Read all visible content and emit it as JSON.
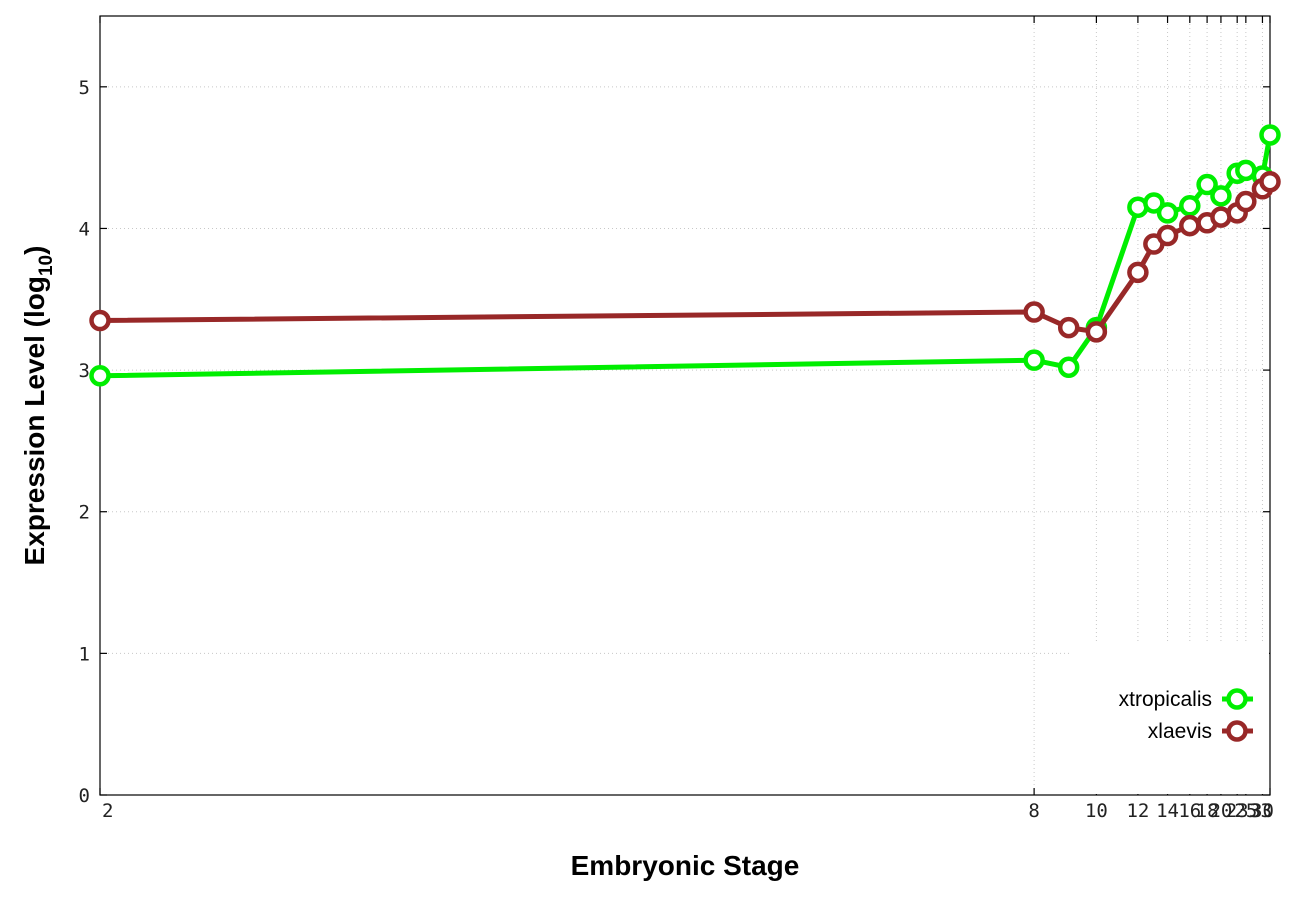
{
  "chart_data": {
    "type": "line",
    "title": "",
    "xlabel": "Embryonic Stage",
    "ylabel": {
      "main": "Expression Level (log",
      "sub": "10",
      "close": ")"
    },
    "x_ticks": [
      2,
      8,
      10,
      12,
      14,
      16,
      18,
      20,
      23,
      25,
      30,
      33
    ],
    "x_tick_labels": [
      "2",
      "8",
      "10",
      "12",
      "14",
      "16",
      "18",
      "20",
      "23",
      "25",
      "30",
      "33"
    ],
    "x_scale": "reciprocal",
    "xlim": [
      2,
      33
    ],
    "y_ticks": [
      0,
      1,
      2,
      3,
      4,
      5
    ],
    "y_tick_labels": [
      "0",
      "1",
      "2",
      "3",
      "4",
      "5"
    ],
    "ylim": [
      0,
      5.5
    ],
    "grid": true,
    "legend_position": "bottom-right",
    "series": [
      {
        "name": "xtropicalis",
        "color": "#00ee00",
        "x": [
          2,
          8,
          9,
          10,
          12,
          13,
          14,
          16,
          18,
          20,
          23,
          25,
          30,
          33
        ],
        "y": [
          2.96,
          3.07,
          3.02,
          3.3,
          4.15,
          4.18,
          4.11,
          4.16,
          4.31,
          4.23,
          4.39,
          4.41,
          4.37,
          4.66
        ]
      },
      {
        "name": "xlaevis",
        "color": "#982828",
        "x": [
          2,
          8,
          9,
          10,
          12,
          13,
          14,
          16,
          18,
          20,
          23,
          25,
          30,
          33
        ],
        "y": [
          3.35,
          3.41,
          3.3,
          3.27,
          3.69,
          3.89,
          3.95,
          4.02,
          4.04,
          4.08,
          4.11,
          4.19,
          4.28,
          4.33
        ]
      }
    ]
  }
}
